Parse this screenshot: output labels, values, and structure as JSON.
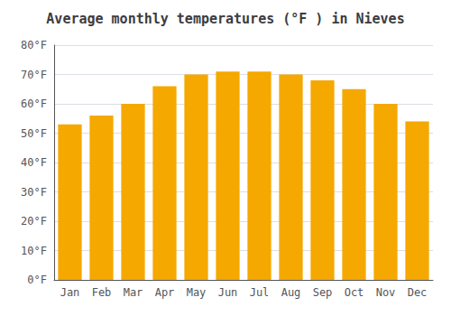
{
  "chart_data": {
    "type": "bar",
    "title": "Average monthly temperatures (°F ) in Nieves",
    "categories": [
      "Jan",
      "Feb",
      "Mar",
      "Apr",
      "May",
      "Jun",
      "Jul",
      "Aug",
      "Sep",
      "Oct",
      "Nov",
      "Dec"
    ],
    "values": [
      53,
      56,
      60,
      66,
      70,
      71,
      71,
      70,
      68,
      65,
      60,
      54
    ],
    "color": "#F5A800",
    "ylim": [
      0,
      80
    ],
    "yticks": [
      {
        "value": 0,
        "label": "0°F"
      },
      {
        "value": 10,
        "label": "10°F"
      },
      {
        "value": 20,
        "label": "20°F"
      },
      {
        "value": 30,
        "label": "30°F"
      },
      {
        "value": 40,
        "label": "40°F"
      },
      {
        "value": 50,
        "label": "50°F"
      },
      {
        "value": 60,
        "label": "60°F"
      },
      {
        "value": 70,
        "label": "70°F"
      },
      {
        "value": 80,
        "label": "80°F"
      }
    ],
    "grid": true
  }
}
